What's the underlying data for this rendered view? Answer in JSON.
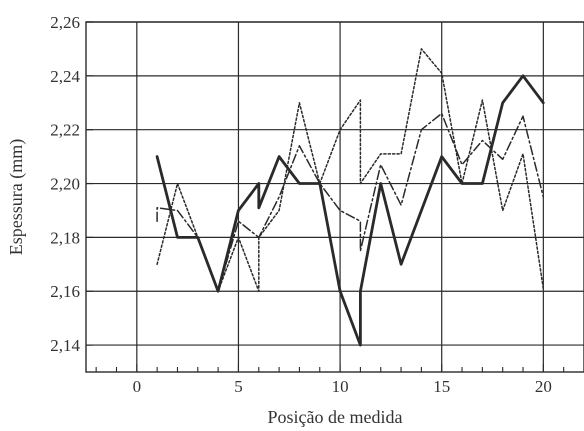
{
  "chart_data": {
    "type": "line",
    "xlabel": "Posição de medida",
    "ylabel": "Espessura (mm)",
    "xlim": [
      -2.5,
      22
    ],
    "ylim": [
      2.13,
      2.26
    ],
    "x_ticks": [
      0,
      5,
      10,
      15,
      20
    ],
    "x_tick_labels": [
      "0",
      "5",
      "10",
      "15",
      "20"
    ],
    "y_ticks": [
      2.14,
      2.16,
      2.18,
      2.2,
      2.22,
      2.24,
      2.26
    ],
    "y_tick_labels": [
      "2,14",
      "2,16",
      "2,18",
      "2,20",
      "2,22",
      "2,24",
      "2,26"
    ],
    "grid": true,
    "series": [
      {
        "style": "solid",
        "color": "#2a2a2a",
        "points": [
          [
            1,
            2.21
          ],
          [
            2,
            2.18
          ],
          [
            3,
            2.18
          ],
          [
            4,
            2.16
          ],
          [
            5,
            2.19
          ],
          [
            6,
            2.2
          ],
          [
            6,
            2.191
          ],
          [
            7,
            2.21
          ],
          [
            8,
            2.2
          ],
          [
            9,
            2.2
          ],
          [
            10,
            2.16
          ],
          [
            11,
            2.14
          ],
          [
            11,
            2.16
          ],
          [
            12,
            2.2
          ],
          [
            13,
            2.17
          ],
          [
            15,
            2.21
          ],
          [
            16,
            2.2
          ],
          [
            17,
            2.2
          ],
          [
            18,
            2.23
          ],
          [
            19,
            2.24
          ],
          [
            20,
            2.23
          ]
        ]
      },
      {
        "style": "dash-dot",
        "color": "#2a2a2a",
        "points": [
          [
            1,
            2.186
          ],
          [
            1,
            2.191
          ],
          [
            2,
            2.19
          ],
          [
            3,
            2.18
          ],
          [
            4,
            2.16
          ],
          [
            5,
            2.186
          ],
          [
            6,
            2.18
          ],
          [
            7,
            2.195
          ],
          [
            8,
            2.214
          ],
          [
            9,
            2.2
          ],
          [
            10,
            2.19
          ],
          [
            11,
            2.186
          ],
          [
            11,
            2.175
          ],
          [
            12,
            2.207
          ],
          [
            13,
            2.192
          ],
          [
            14,
            2.22
          ],
          [
            15,
            2.226
          ],
          [
            16,
            2.207
          ],
          [
            17,
            2.216
          ],
          [
            18,
            2.209
          ],
          [
            19,
            2.225
          ],
          [
            20,
            2.195
          ]
        ]
      },
      {
        "style": "dotted",
        "color": "#2a2a2a",
        "points": [
          [
            1,
            2.17
          ],
          [
            2,
            2.2
          ],
          [
            3,
            2.18
          ],
          [
            4,
            2.16
          ],
          [
            5,
            2.18
          ],
          [
            6,
            2.16
          ],
          [
            6,
            2.18
          ],
          [
            7,
            2.19
          ],
          [
            8,
            2.23
          ],
          [
            9,
            2.2
          ],
          [
            10,
            2.22
          ],
          [
            11,
            2.231
          ],
          [
            11,
            2.2
          ],
          [
            12,
            2.211
          ],
          [
            13,
            2.211
          ],
          [
            14,
            2.25
          ],
          [
            15,
            2.241
          ],
          [
            16,
            2.2
          ],
          [
            17,
            2.231
          ],
          [
            18,
            2.19
          ],
          [
            19,
            2.211
          ],
          [
            20,
            2.161
          ]
        ]
      }
    ]
  }
}
